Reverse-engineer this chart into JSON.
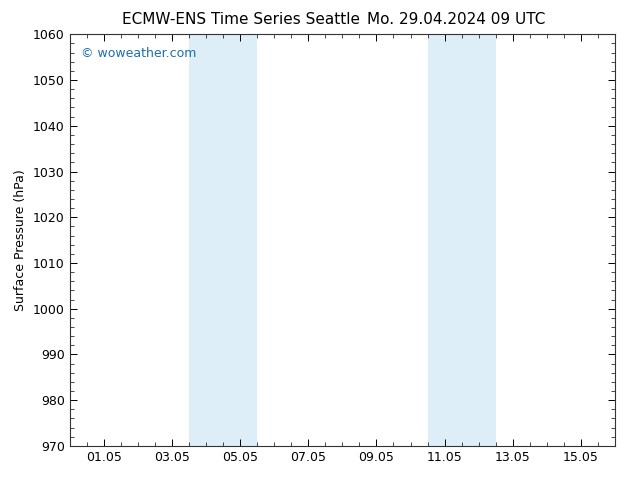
{
  "title_left": "ECMW-ENS Time Series Seattle",
  "title_right": "Mo. 29.04.2024 09 UTC",
  "ylabel": "Surface Pressure (hPa)",
  "xlim": [
    0,
    16
  ],
  "ylim": [
    970,
    1060
  ],
  "yticks": [
    970,
    980,
    990,
    1000,
    1010,
    1020,
    1030,
    1040,
    1050,
    1060
  ],
  "xtick_labels": [
    "01.05",
    "03.05",
    "05.05",
    "07.05",
    "09.05",
    "11.05",
    "13.05",
    "15.05"
  ],
  "xtick_positions": [
    1,
    3,
    5,
    7,
    9,
    11,
    13,
    15
  ],
  "shaded_bands": [
    {
      "xmin": 3.5,
      "xmax": 5.5
    },
    {
      "xmin": 10.5,
      "xmax": 12.5
    }
  ],
  "shaded_color": "#ddeef8",
  "background_color": "#ffffff",
  "watermark_text": "© woweather.com",
  "watermark_color": "#1a6faf",
  "title_fontsize": 11,
  "axis_label_fontsize": 9,
  "tick_fontsize": 9,
  "watermark_fontsize": 9,
  "spine_color": "#333333",
  "minor_tick_count": 4
}
